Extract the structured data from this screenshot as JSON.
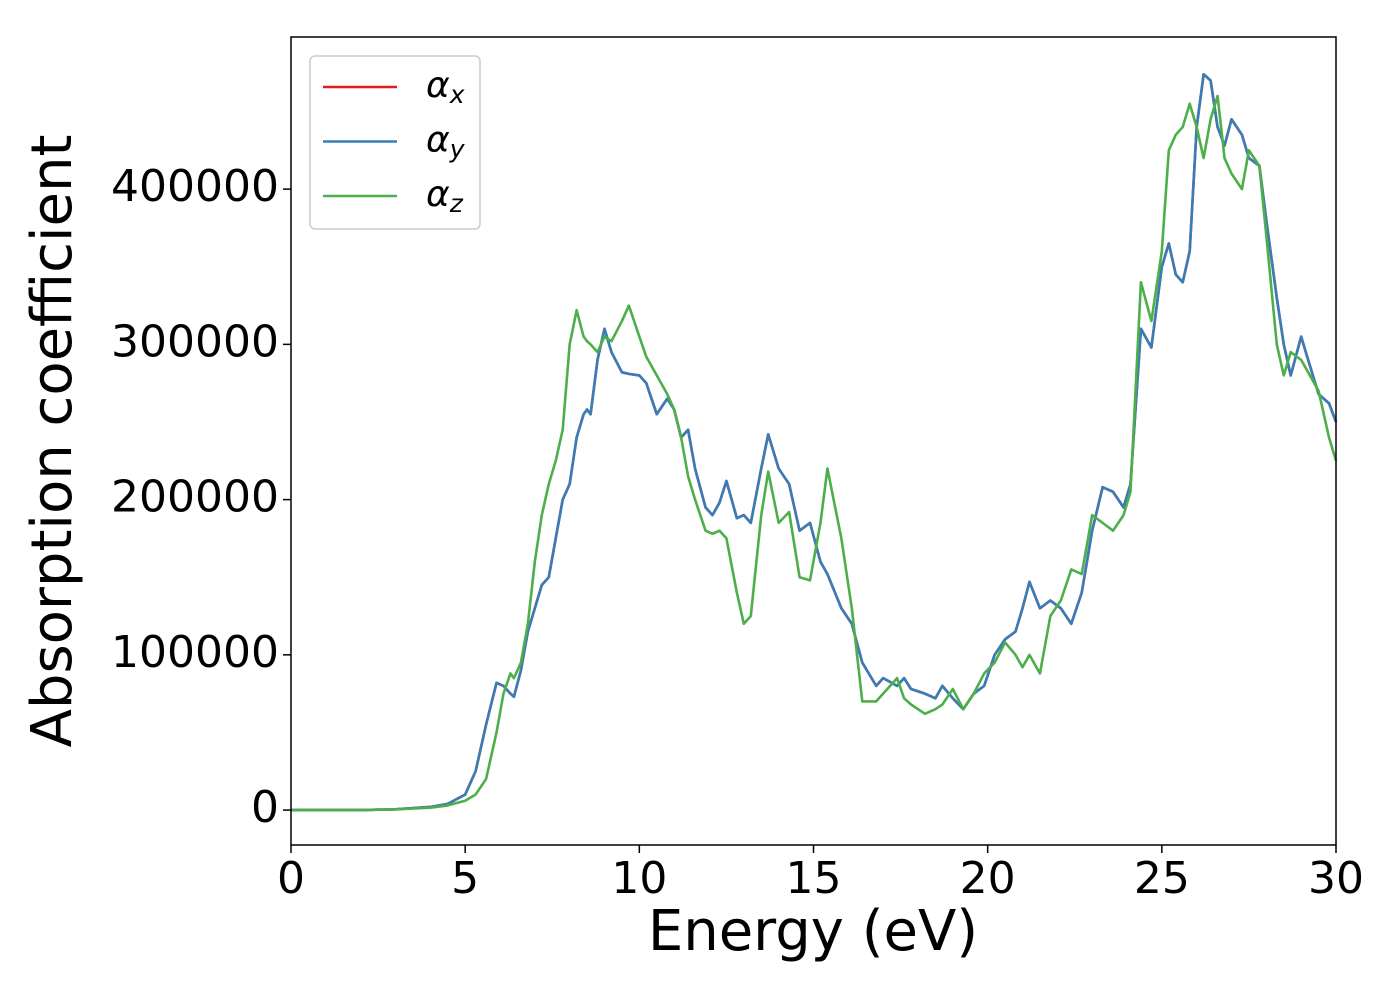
{
  "chart_data": {
    "type": "line",
    "xlabel": "Energy (eV)",
    "ylabel": "Absorption coefficient",
    "x": [
      0,
      2,
      3,
      4,
      4.5,
      5,
      5.3,
      5.6,
      5.9,
      6.1,
      6.3,
      6.4,
      6.6,
      6.8,
      7,
      7.2,
      7.4,
      7.6,
      7.8,
      8,
      8.2,
      8.4,
      8.5,
      8.6,
      8.8,
      9,
      9.2,
      9.5,
      9.7,
      10,
      10.2,
      10.5,
      10.8,
      11,
      11.2,
      11.4,
      11.6,
      11.9,
      12.1,
      12.3,
      12.5,
      12.8,
      13,
      13.2,
      13.5,
      13.7,
      14,
      14.3,
      14.6,
      14.9,
      15.2,
      15.4,
      15.8,
      16.1,
      16.4,
      16.8,
      17,
      17.4,
      17.6,
      17.8,
      18.2,
      18.5,
      18.7,
      19,
      19.3,
      19.6,
      19.9,
      20.2,
      20.5,
      20.8,
      21,
      21.2,
      21.5,
      21.8,
      22.1,
      22.4,
      22.7,
      23,
      23.3,
      23.6,
      23.9,
      24.1,
      24.4,
      24.7,
      25,
      25.2,
      25.4,
      25.6,
      25.8,
      26,
      26.2,
      26.4,
      26.6,
      26.8,
      27,
      27.3,
      27.5,
      27.8,
      28,
      28.3,
      28.5,
      28.7,
      29,
      29.2,
      29.5,
      29.8,
      30
    ],
    "series": [
      {
        "name": "αx",
        "color": "#e41a1c",
        "values": [
          0,
          0,
          500,
          2000,
          4000,
          10000,
          25000,
          55000,
          82000,
          80000,
          75000,
          73000,
          90000,
          115000,
          130000,
          145000,
          150000,
          175000,
          200000,
          210000,
          240000,
          255000,
          258000,
          255000,
          290000,
          310000,
          295000,
          282000,
          281000,
          280000,
          275000,
          255000,
          265000,
          258000,
          240000,
          245000,
          220000,
          195000,
          190000,
          198000,
          212000,
          188000,
          190000,
          185000,
          220000,
          242000,
          220000,
          210000,
          180000,
          185000,
          160000,
          152000,
          130000,
          120000,
          95000,
          80000,
          85000,
          80000,
          85000,
          78000,
          75000,
          72000,
          80000,
          72000,
          65000,
          75000,
          80000,
          100000,
          110000,
          115000,
          130000,
          147000,
          130000,
          135000,
          130000,
          120000,
          140000,
          180000,
          208000,
          205000,
          195000,
          210000,
          310000,
          298000,
          350000,
          365000,
          345000,
          340000,
          360000,
          440000,
          474000,
          470000,
          440000,
          428000,
          445000,
          435000,
          420000,
          415000,
          380000,
          330000,
          300000,
          280000,
          305000,
          290000,
          268000,
          262000,
          250000
        ]
      },
      {
        "name": "αy",
        "color": "#377eb8",
        "values": [
          0,
          0,
          500,
          2000,
          4000,
          10000,
          25000,
          55000,
          82000,
          80000,
          75000,
          73000,
          90000,
          115000,
          130000,
          145000,
          150000,
          175000,
          200000,
          210000,
          240000,
          255000,
          258000,
          255000,
          290000,
          310000,
          295000,
          282000,
          281000,
          280000,
          275000,
          255000,
          265000,
          258000,
          240000,
          245000,
          220000,
          195000,
          190000,
          198000,
          212000,
          188000,
          190000,
          185000,
          220000,
          242000,
          220000,
          210000,
          180000,
          185000,
          160000,
          152000,
          130000,
          120000,
          95000,
          80000,
          85000,
          80000,
          85000,
          78000,
          75000,
          72000,
          80000,
          72000,
          65000,
          75000,
          80000,
          100000,
          110000,
          115000,
          130000,
          147000,
          130000,
          135000,
          130000,
          120000,
          140000,
          180000,
          208000,
          205000,
          195000,
          210000,
          310000,
          298000,
          350000,
          365000,
          345000,
          340000,
          360000,
          440000,
          474000,
          470000,
          440000,
          428000,
          445000,
          435000,
          420000,
          415000,
          380000,
          330000,
          300000,
          280000,
          305000,
          290000,
          268000,
          262000,
          250000
        ]
      },
      {
        "name": "αz",
        "color": "#4daf4a",
        "values": [
          0,
          0,
          500,
          1500,
          3000,
          6000,
          10000,
          20000,
          50000,
          75000,
          88000,
          85000,
          95000,
          120000,
          160000,
          190000,
          210000,
          225000,
          245000,
          300000,
          322000,
          305000,
          302000,
          300000,
          295000,
          305000,
          302000,
          315000,
          325000,
          305000,
          292000,
          280000,
          268000,
          258000,
          240000,
          215000,
          200000,
          180000,
          178000,
          180000,
          175000,
          140000,
          120000,
          125000,
          190000,
          218000,
          185000,
          192000,
          150000,
          148000,
          185000,
          220000,
          175000,
          130000,
          70000,
          70000,
          75000,
          85000,
          72000,
          68000,
          62000,
          65000,
          68000,
          78000,
          65000,
          75000,
          88000,
          95000,
          108000,
          100000,
          92000,
          100000,
          88000,
          125000,
          135000,
          155000,
          152000,
          190000,
          185000,
          180000,
          190000,
          205000,
          340000,
          315000,
          360000,
          425000,
          435000,
          440000,
          455000,
          440000,
          420000,
          445000,
          460000,
          420000,
          410000,
          400000,
          425000,
          415000,
          370000,
          300000,
          280000,
          295000,
          290000,
          282000,
          270000,
          240000,
          225000
        ]
      }
    ],
    "xlim": [
      0,
      30
    ],
    "xticks": [
      0,
      5,
      10,
      15,
      20,
      25,
      30
    ],
    "ylim": [
      -22500,
      498000
    ],
    "yticks": [
      0,
      100000,
      200000,
      300000,
      400000
    ],
    "grid": false,
    "legend": "upper left"
  }
}
